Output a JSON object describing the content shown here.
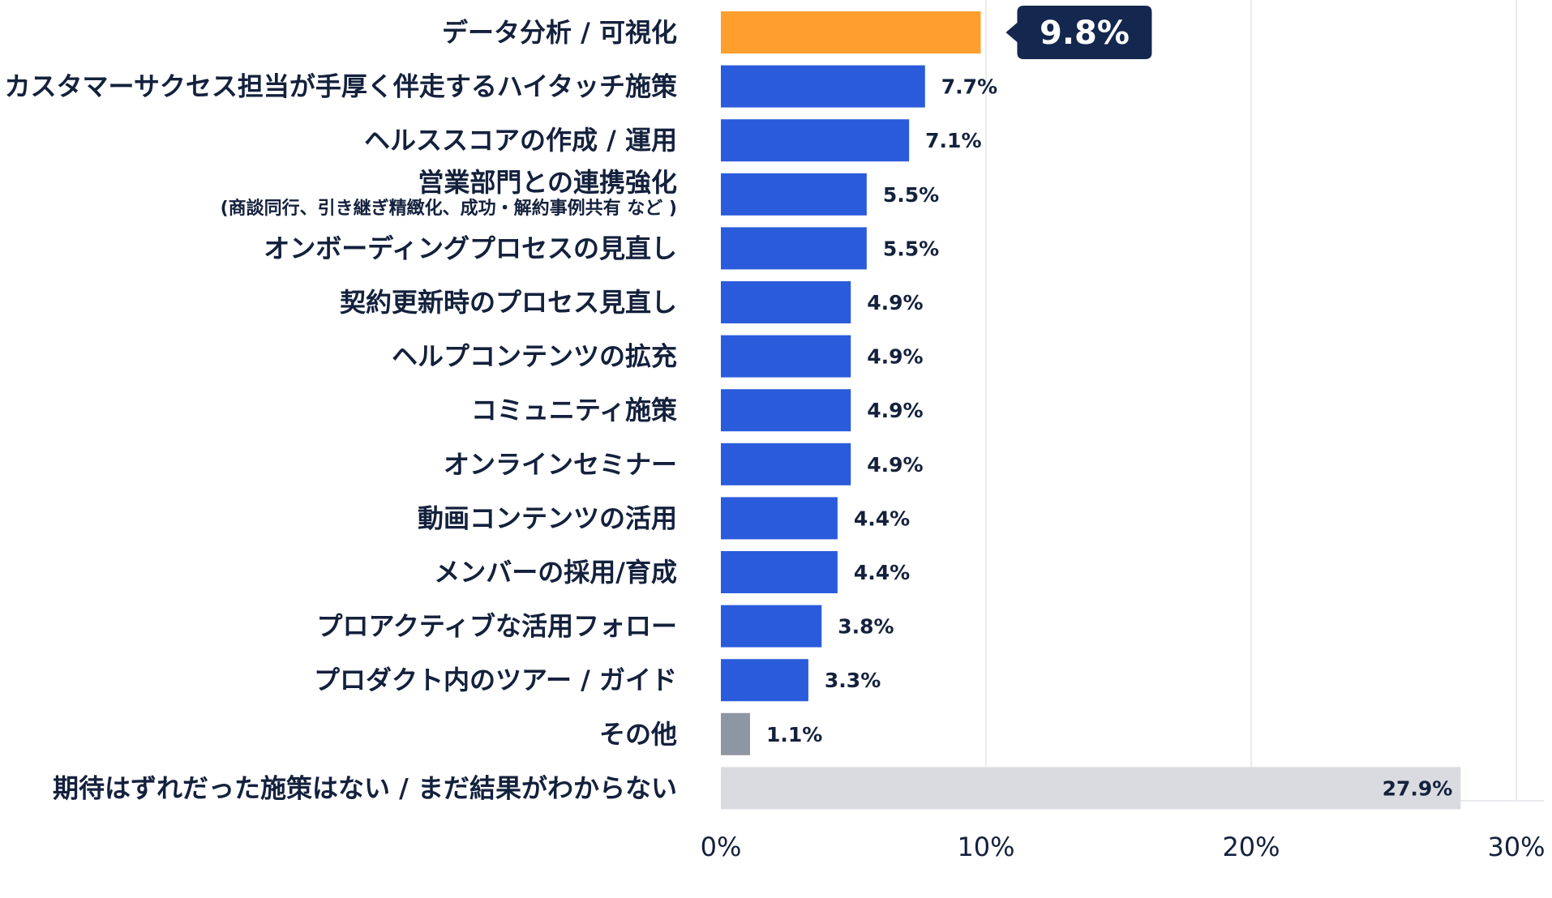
{
  "chart_data": {
    "type": "bar",
    "orientation": "horizontal",
    "title": "",
    "xlabel": "",
    "ylabel": "",
    "xlim": [
      0,
      30
    ],
    "grid": true,
    "x_ticks": [
      0,
      10,
      20,
      30
    ],
    "x_tick_labels": [
      "0%",
      "10%",
      "20%",
      "30%"
    ],
    "categories": [
      {
        "label": "データ分析 / 可視化",
        "sub": "",
        "value": 9.8,
        "value_label": "9.8%",
        "color": "#ff9f2e",
        "highlight": true
      },
      {
        "label": "カスタマーサクセス担当が手厚く伴走するハイタッチ施策",
        "sub": "",
        "value": 7.7,
        "value_label": "7.7%",
        "color": "#2a5bdb",
        "highlight": false
      },
      {
        "label": "ヘルススコアの作成 / 運用",
        "sub": "",
        "value": 7.1,
        "value_label": "7.1%",
        "color": "#2a5bdb",
        "highlight": false
      },
      {
        "label": "営業部門との連携強化",
        "sub": "(商談同行、引き継ぎ精緻化、成功・解約事例共有 など )",
        "value": 5.5,
        "value_label": "5.5%",
        "color": "#2a5bdb",
        "highlight": false
      },
      {
        "label": "オンボーディングプロセスの見直し",
        "sub": "",
        "value": 5.5,
        "value_label": "5.5%",
        "color": "#2a5bdb",
        "highlight": false
      },
      {
        "label": "契約更新時のプロセス見直し",
        "sub": "",
        "value": 4.9,
        "value_label": "4.9%",
        "color": "#2a5bdb",
        "highlight": false
      },
      {
        "label": "ヘルプコンテンツの拡充",
        "sub": "",
        "value": 4.9,
        "value_label": "4.9%",
        "color": "#2a5bdb",
        "highlight": false
      },
      {
        "label": "コミュニティ施策",
        "sub": "",
        "value": 4.9,
        "value_label": "4.9%",
        "color": "#2a5bdb",
        "highlight": false
      },
      {
        "label": "オンラインセミナー",
        "sub": "",
        "value": 4.9,
        "value_label": "4.9%",
        "color": "#2a5bdb",
        "highlight": false
      },
      {
        "label": "動画コンテンツの活用",
        "sub": "",
        "value": 4.4,
        "value_label": "4.4%",
        "color": "#2a5bdb",
        "highlight": false
      },
      {
        "label": "メンバーの採用/育成",
        "sub": "",
        "value": 4.4,
        "value_label": "4.4%",
        "color": "#2a5bdb",
        "highlight": false
      },
      {
        "label": "プロアクティブな活用フォロー",
        "sub": "",
        "value": 3.8,
        "value_label": "3.8%",
        "color": "#2a5bdb",
        "highlight": false
      },
      {
        "label": "プロダクト内のツアー / ガイド",
        "sub": "",
        "value": 3.3,
        "value_label": "3.3%",
        "color": "#2a5bdb",
        "highlight": false
      },
      {
        "label": "その他",
        "sub": "",
        "value": 1.1,
        "value_label": "1.1%",
        "color": "#8e96a3",
        "highlight": false
      },
      {
        "label": "期待はずれだった施策はない / まだ結果がわからない",
        "sub": "",
        "value": 27.9,
        "value_label": "27.9%",
        "color": "#d9dbe0",
        "highlight": false
      }
    ],
    "colors": {
      "text": "#14213d",
      "grid": "#e3e5ea",
      "callout_bg": "#14274e",
      "callout_text": "#ffffff"
    }
  }
}
